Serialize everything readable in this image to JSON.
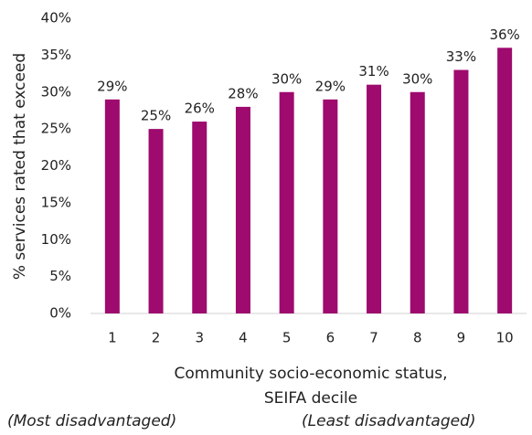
{
  "chart_data": {
    "type": "bar",
    "y_label": "% services rated that exceed",
    "x_label": "Community socio-economic status, SEIFA decile",
    "annotations": [
      "(Most disadvantaged)",
      "(Least disadvantaged)"
    ],
    "categories": [
      "1",
      "2",
      "3",
      "4",
      "5",
      "6",
      "7",
      "8",
      "9",
      "10"
    ],
    "values": [
      29,
      25,
      26,
      28,
      30,
      29,
      31,
      30,
      33,
      36
    ],
    "value_labels": [
      "29%",
      "25%",
      "26%",
      "28%",
      "30%",
      "29%",
      "31%",
      "30%",
      "33%",
      "36%"
    ],
    "color": "#9e0a6e",
    "ylim": [
      0,
      40
    ],
    "yticks": [
      {
        "value": 0,
        "label": "0%"
      },
      {
        "value": 5,
        "label": "5%"
      },
      {
        "value": 10,
        "label": "10%"
      },
      {
        "value": 15,
        "label": "15%"
      },
      {
        "value": 20,
        "label": "20%"
      },
      {
        "value": 25,
        "label": "25%"
      },
      {
        "value": 30,
        "label": "30%"
      },
      {
        "value": 35,
        "label": "35%"
      },
      {
        "value": 40,
        "label": "40%"
      }
    ],
    "grid": false
  }
}
